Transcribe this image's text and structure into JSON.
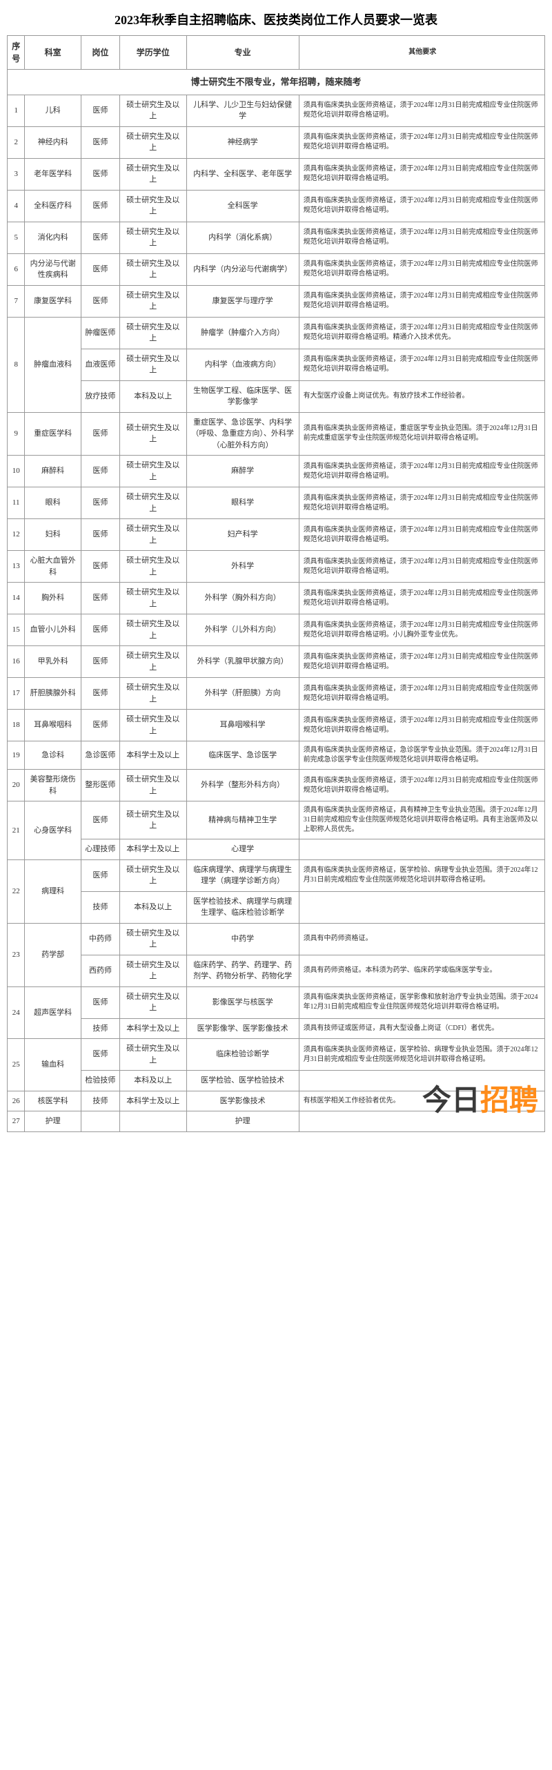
{
  "title": "2023年秋季自主招聘临床、医技类岗位工作人员要求一览表",
  "headers": [
    "序号",
    "科室",
    "岗位",
    "学历学位",
    "专业",
    "其他要求"
  ],
  "banner": "博士研究生不限专业，常年招聘，随来随考",
  "req_std": "须具有临床类执业医师资格证，须于2024年12月31日前完成相应专业住院医师规范化培训并取得合格证明。",
  "rows": [
    {
      "n": "1",
      "dept": "儿科",
      "pos": "医师",
      "edu": "硕士研究生及以上",
      "major": "儿科学、儿少卫生与妇幼保健学",
      "other": "须具有临床类执业医师资格证，须于2024年12月31日前完成相应专业住院医师规范化培训并取得合格证明。"
    },
    {
      "n": "2",
      "dept": "神经内科",
      "pos": "医师",
      "edu": "硕士研究生及以上",
      "major": "神经病学",
      "other": "须具有临床类执业医师资格证，须于2024年12月31日前完成相应专业住院医师规范化培训并取得合格证明。"
    },
    {
      "n": "3",
      "dept": "老年医学科",
      "pos": "医师",
      "edu": "硕士研究生及以上",
      "major": "内科学、全科医学、老年医学",
      "other": "须具有临床类执业医师资格证，须于2024年12月31日前完成相应专业住院医师规范化培训并取得合格证明。"
    },
    {
      "n": "4",
      "dept": "全科医疗科",
      "pos": "医师",
      "edu": "硕士研究生及以上",
      "major": "全科医学",
      "other": "须具有临床类执业医师资格证，须于2024年12月31日前完成相应专业住院医师规范化培训并取得合格证明。"
    },
    {
      "n": "5",
      "dept": "消化内科",
      "pos": "医师",
      "edu": "硕士研究生及以上",
      "major": "内科学（消化系病）",
      "other": "须具有临床类执业医师资格证，须于2024年12月31日前完成相应专业住院医师规范化培训并取得合格证明。"
    },
    {
      "n": "6",
      "dept": "内分泌与代谢性疾病科",
      "pos": "医师",
      "edu": "硕士研究生及以上",
      "major": "内科学（内分泌与代谢病学）",
      "other": "须具有临床类执业医师资格证，须于2024年12月31日前完成相应专业住院医师规范化培训并取得合格证明。"
    },
    {
      "n": "7",
      "dept": "康复医学科",
      "pos": "医师",
      "edu": "硕士研究生及以上",
      "major": "康复医学与理疗学",
      "other": "须具有临床类执业医师资格证，须于2024年12月31日前完成相应专业住院医师规范化培训并取得合格证明。"
    }
  ],
  "dept8": {
    "n": "8",
    "dept": "肿瘤血液科",
    "r1": {
      "pos": "肿瘤医师",
      "edu": "硕士研究生及以上",
      "major": "肿瘤学（肿瘤介入方向）",
      "other": "须具有临床类执业医师资格证，须于2024年12月31日前完成相应专业住院医师规范化培训并取得合格证明。精通介入技术优先。"
    },
    "r2": {
      "pos": "血液医师",
      "edu": "硕士研究生及以上",
      "major": "内科学（血液病方向）",
      "other": "须具有临床类执业医师资格证，须于2024年12月31日前完成相应专业住院医师规范化培训并取得合格证明。"
    },
    "r3": {
      "pos": "放疗技师",
      "edu": "本科及以上",
      "major": "生物医学工程、临床医学、医学影像学",
      "other": "有大型医疗设备上岗证优先。有放疗技术工作经验者。"
    }
  },
  "rows2": [
    {
      "n": "9",
      "dept": "重症医学科",
      "pos": "医师",
      "edu": "硕士研究生及以上",
      "major": "重症医学、急诊医学、内科学（呼吸、急重症方向）、外科学（心脏外科方向）",
      "other": "须具有临床类执业医师资格证，重症医学专业执业范围。须于2024年12月31日前完成重症医学专业住院医师规范化培训并取得合格证明。"
    },
    {
      "n": "10",
      "dept": "麻醉科",
      "pos": "医师",
      "edu": "硕士研究生及以上",
      "major": "麻醉学",
      "other": "须具有临床类执业医师资格证，须于2024年12月31日前完成相应专业住院医师规范化培训并取得合格证明。"
    },
    {
      "n": "11",
      "dept": "眼科",
      "pos": "医师",
      "edu": "硕士研究生及以上",
      "major": "眼科学",
      "other": "须具有临床类执业医师资格证，须于2024年12月31日前完成相应专业住院医师规范化培训并取得合格证明。"
    },
    {
      "n": "12",
      "dept": "妇科",
      "pos": "医师",
      "edu": "硕士研究生及以上",
      "major": "妇产科学",
      "other": "须具有临床类执业医师资格证，须于2024年12月31日前完成相应专业住院医师规范化培训并取得合格证明。"
    },
    {
      "n": "13",
      "dept": "心脏大血管外科",
      "pos": "医师",
      "edu": "硕士研究生及以上",
      "major": "外科学",
      "other": "须具有临床类执业医师资格证，须于2024年12月31日前完成相应专业住院医师规范化培训并取得合格证明。"
    },
    {
      "n": "14",
      "dept": "胸外科",
      "pos": "医师",
      "edu": "硕士研究生及以上",
      "major": "外科学（胸外科方向）",
      "other": "须具有临床类执业医师资格证，须于2024年12月31日前完成相应专业住院医师规范化培训并取得合格证明。"
    },
    {
      "n": "15",
      "dept": "血管小儿外科",
      "pos": "医师",
      "edu": "硕士研究生及以上",
      "major": "外科学（儿外科方向）",
      "other": "须具有临床类执业医师资格证，须于2024年12月31日前完成相应专业住院医师规范化培训并取得合格证明。小儿胸外亚专业优先。"
    },
    {
      "n": "16",
      "dept": "甲乳外科",
      "pos": "医师",
      "edu": "硕士研究生及以上",
      "major": "外科学（乳腺甲状腺方向）",
      "other": "须具有临床类执业医师资格证，须于2024年12月31日前完成相应专业住院医师规范化培训并取得合格证明。"
    },
    {
      "n": "17",
      "dept": "肝胆胰腺外科",
      "pos": "医师",
      "edu": "硕士研究生及以上",
      "major": "外科学（肝胆胰）方向",
      "other": "须具有临床类执业医师资格证，须于2024年12月31日前完成相应专业住院医师规范化培训并取得合格证明。"
    },
    {
      "n": "18",
      "dept": "耳鼻喉咽科",
      "pos": "医师",
      "edu": "硕士研究生及以上",
      "major": "耳鼻咽喉科学",
      "other": "须具有临床类执业医师资格证，须于2024年12月31日前完成相应专业住院医师规范化培训并取得合格证明。"
    },
    {
      "n": "19",
      "dept": "急诊科",
      "pos": "急诊医师",
      "edu": "本科学士及以上",
      "major": "临床医学、急诊医学",
      "other": "须具有临床类执业医师资格证，急诊医学专业执业范围。须于2024年12月31日前完成急诊医学专业住院医师规范化培训并取得合格证明。"
    },
    {
      "n": "20",
      "dept": "美容整形烧伤科",
      "pos": "整形医师",
      "edu": "硕士研究生及以上",
      "major": "外科学（整形外科方向）",
      "other": "须具有临床类执业医师资格证，须于2024年12月31日前完成相应专业住院医师规范化培训并取得合格证明。"
    }
  ],
  "dept21": {
    "n": "21",
    "dept": "心身医学科",
    "r1": {
      "pos": "医师",
      "edu": "硕士研究生及以上",
      "major": "精神病与精神卫生学",
      "other": "须具有临床类执业医师资格证，具有精神卫生专业执业范围。须于2024年12月31日前完成相应专业住院医师规范化培训并取得合格证明。具有主治医师及以上职称人员优先。"
    },
    "r2": {
      "pos": "心理技师",
      "edu": "本科学士及以上",
      "major": "心理学",
      "other": ""
    }
  },
  "dept22": {
    "n": "22",
    "dept": "病理科",
    "r1": {
      "pos": "医师",
      "edu": "硕士研究生及以上",
      "major": "临床病理学、病理学与病理生理学（病理学诊断方向）",
      "other": "须具有临床类执业医师资格证，医学检验、病理专业执业范围。须于2024年12月31日前完成相应专业住院医师规范化培训并取得合格证明。"
    },
    "r2": {
      "pos": "技师",
      "edu": "本科及以上",
      "major": "医学检验技术、病理学与病理生理学、临床检验诊断学",
      "other": ""
    }
  },
  "dept23": {
    "n": "23",
    "dept": "药学部",
    "r1": {
      "pos": "中药师",
      "edu": "硕士研究生及以上",
      "major": "中药学",
      "other": "须具有中药师资格证。"
    },
    "r2": {
      "pos": "西药师",
      "edu": "硕士研究生及以上",
      "major": "临床药学、药学、药理学、药剂学、药物分析学、药物化学",
      "other": "须具有药师资格证。本科须为药学、临床药学或临床医学专业。"
    }
  },
  "dept24": {
    "n": "24",
    "dept": "超声医学科",
    "r1": {
      "pos": "医师",
      "edu": "硕士研究生及以上",
      "major": "影像医学与核医学",
      "other": "须具有临床类执业医师资格证，医学影像和放射治疗专业执业范围。须于2024年12月31日前完成相应专业住院医师规范化培训并取得合格证明。"
    },
    "r2": {
      "pos": "技师",
      "edu": "本科学士及以上",
      "major": "医学影像学、医学影像技术",
      "other": "须具有技师证或医师证，具有大型设备上岗证（CDFI）者优先。"
    }
  },
  "dept25": {
    "n": "25",
    "dept": "输血科",
    "r1": {
      "pos": "医师",
      "edu": "硕士研究生及以上",
      "major": "临床检验诊断学",
      "other": "须具有临床类执业医师资格证，医学检验、病理专业执业范围。须于2024年12月31日前完成相应专业住院医师规范化培训并取得合格证明。"
    },
    "r2": {
      "pos": "检验技师",
      "edu": "本科及以上",
      "major": "医学检验、医学检验技术",
      "other": ""
    }
  },
  "row26": {
    "n": "26",
    "dept": "核医学科",
    "pos": "技师",
    "edu": "本科学士及以上",
    "major": "医学影像技术",
    "other": "有核医学相关工作经验者优先。"
  },
  "row27": {
    "n": "27",
    "dept": "护理",
    "pos": "",
    "edu": "",
    "major": "护理",
    "other": ""
  },
  "watermark": {
    "part1": "今日",
    "part2": "招聘"
  }
}
